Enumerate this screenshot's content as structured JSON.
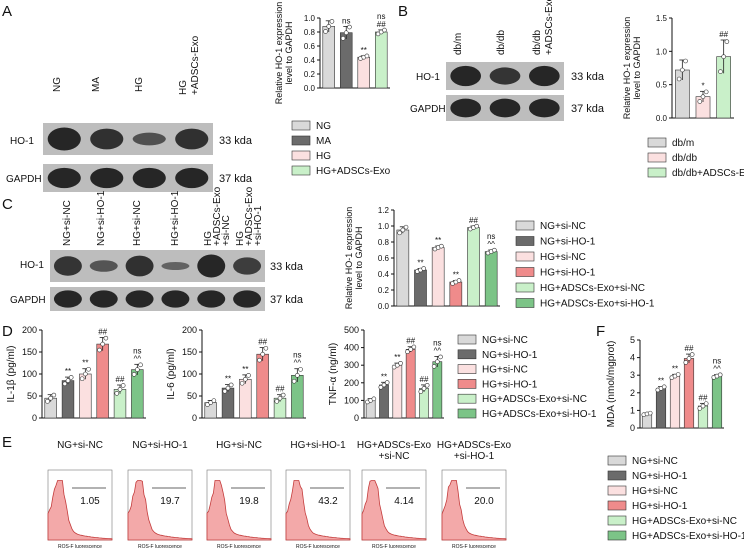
{
  "colors": {
    "NG": "#d9d9d9",
    "MA": "#6b6b6b",
    "HG": "#fbe0e0",
    "HG_ADSCs_Exo": "#c9f0c9",
    "si_NC_ng": "#d9d9d9",
    "si_HO1_ng": "#6b6b6b",
    "si_NC_hg": "#fbe0e0",
    "si_HO1_hg": "#ef8b8b",
    "exo_si_NC": "#c9f0c9",
    "exo_si_HO1": "#7cc487",
    "blot_bg": "#bdbdbd",
    "band": "#151515",
    "flow_fill": "#f3a9a9",
    "flow_line": "#c43c3c"
  },
  "panelA": {
    "label": "A",
    "lanes": [
      "NG",
      "MA",
      "HG",
      "HG\n+ADSCs-Exo"
    ],
    "rows": [
      {
        "name": "HO-1",
        "size": "33 kda"
      },
      {
        "name": "GAPDH",
        "size": "37 kda"
      }
    ],
    "chart_data": {
      "type": "bar",
      "ylabel": "Relative HO-1 expression\nlevel to GAPDH",
      "ylim": [
        0,
        1.0
      ],
      "yticks": [
        "0.0",
        "0.2",
        "0.4",
        "0.6",
        "0.8",
        "1.0"
      ],
      "categories": [
        "NG",
        "MA",
        "HG",
        "HG+ADSCs-Exo"
      ],
      "values": [
        0.88,
        0.79,
        0.44,
        0.8
      ],
      "errors": [
        0.08,
        0.09,
        0.02,
        0.03
      ],
      "sig": [
        "",
        "ns",
        "**",
        "ns\n##"
      ],
      "legend": [
        "NG",
        "MA",
        "HG",
        "HG+ADSCs-Exo"
      ]
    }
  },
  "panelB": {
    "label": "B",
    "lanes": [
      "db/m",
      "db/db",
      "db/db\n+ADSCs-Exo"
    ],
    "rows": [
      {
        "name": "HO-1",
        "size": "33 kda"
      },
      {
        "name": "GAPDH",
        "size": "37 kda"
      }
    ],
    "chart_data": {
      "type": "bar",
      "ylabel": "Relative HO-1 expression\nlevel to GAPDH",
      "ylim": [
        0,
        1.5
      ],
      "yticks": [
        "0.0",
        "0.5",
        "1.0",
        "1.5"
      ],
      "categories": [
        "db/m",
        "db/db",
        "db/db+ADSCs-Exo"
      ],
      "values": [
        0.72,
        0.32,
        0.92
      ],
      "errors": [
        0.15,
        0.08,
        0.25
      ],
      "sig": [
        "",
        "*",
        "##"
      ],
      "legend": [
        "db/m",
        "db/db",
        "db/db+ADSCs-Exo"
      ]
    }
  },
  "panelC": {
    "label": "C",
    "lanes": [
      "NG+si-NC",
      "NG+si-HO-1",
      "HG+si-NC",
      "HG+si-HO-1",
      "HG\n+ADSCs-Exo\n+si-NC",
      "HG\n+ADSCs-Exo\n+si-HO-1"
    ],
    "rows": [
      {
        "name": "HO-1",
        "size": "33 kda"
      },
      {
        "name": "GAPDH",
        "size": "37 kda"
      }
    ],
    "chart_data": {
      "type": "bar",
      "ylabel": "Relative HO-1 expression\nlevel to GAPDH",
      "ylim": [
        0,
        1.2
      ],
      "yticks": [
        "0.0",
        "0.2",
        "0.4",
        "0.6",
        "0.8",
        "1.0",
        "1.2"
      ],
      "categories": [
        "NG+si-NC",
        "NG+si-HO-1",
        "HG+si-NC",
        "HG+si-HO-1",
        "HG+ADSCs-Exo+si-NC",
        "HG+ADSCs-Exo+si-HO-1"
      ],
      "values": [
        0.95,
        0.45,
        0.73,
        0.3,
        0.98,
        0.68
      ],
      "errors": [
        0.04,
        0.02,
        0.02,
        0.02,
        0.02,
        0.02
      ],
      "sig": [
        "",
        "**",
        "**",
        "**",
        "##",
        "ns\n^^"
      ],
      "legend": [
        "NG+si-NC",
        "NG+si-HO-1",
        "HG+si-NC",
        "HG+si-HO-1",
        "HG+ADSCs-Exo+si-NC",
        "HG+ADSCs-Exo+si-HO-1"
      ]
    }
  },
  "panelD": {
    "label": "D",
    "legend": [
      "NG+si-NC",
      "NG+si-HO-1",
      "HG+si-NC",
      "HG+si-HO-1",
      "HG+ADSCs-Exo+si-NC",
      "HG+ADSCs-Exo+si-HO-1"
    ],
    "charts": [
      {
        "type": "bar",
        "ylabel": "IL-1β (pg/ml)",
        "ylim": [
          0,
          200
        ],
        "yticks": [
          "0",
          "50",
          "100",
          "150",
          "200"
        ],
        "values": [
          45,
          85,
          100,
          168,
          65,
          110
        ],
        "errors": [
          8,
          8,
          12,
          15,
          10,
          12
        ],
        "sig": [
          "",
          "**",
          "**",
          "##",
          "##",
          "ns\n^^"
        ]
      },
      {
        "type": "bar",
        "ylabel": "IL-6 (pg/ml)",
        "ylim": [
          0,
          200
        ],
        "yticks": [
          "0",
          "50",
          "100",
          "150",
          "200"
        ],
        "values": [
          35,
          68,
          88,
          145,
          45,
          97
        ],
        "errors": [
          5,
          8,
          10,
          15,
          8,
          15
        ],
        "sig": [
          "",
          "**",
          "**",
          "##",
          "##",
          "ns\n^^"
        ]
      },
      {
        "type": "bar",
        "ylabel": "TNF-α (ng/ml)",
        "ylim": [
          0,
          500
        ],
        "yticks": [
          "0",
          "100",
          "200",
          "300",
          "400",
          "500"
        ],
        "values": [
          100,
          188,
          300,
          390,
          168,
          320
        ],
        "errors": [
          10,
          15,
          12,
          15,
          20,
          30
        ],
        "sig": [
          "",
          "**",
          "**",
          "##",
          "##",
          "ns\n^^"
        ]
      }
    ]
  },
  "panelE": {
    "label": "E",
    "titles": [
      "NG+si-NC",
      "NG+si-HO-1",
      "HG+si-NC",
      "HG+si-HO-1",
      "HG+ADSCs-Exo\n+si-NC",
      "HG+ADSCs-Exo\n+si-HO-1"
    ],
    "values": [
      "1.05",
      "19.7",
      "19.8",
      "43.2",
      "4.14",
      "20.0"
    ],
    "xlabel": "ROS-F luorescence"
  },
  "panelF": {
    "label": "F",
    "chart_data": {
      "type": "bar",
      "ylabel": "MDA (nmol/mgprot)",
      "ylim": [
        0,
        5
      ],
      "yticks": [
        "0",
        "1",
        "2",
        "3",
        "4",
        "5"
      ],
      "categories": [
        "NG+si-NC",
        "NG+si-HO-1",
        "HG+si-NC",
        "HG+si-HO-1",
        "HG+ADSCs-Exo+si-NC",
        "HG+ADSCs-Exo+si-HO-1"
      ],
      "values": [
        0.8,
        2.25,
        2.95,
        3.95,
        1.25,
        2.95
      ],
      "errors": [
        0.05,
        0.1,
        0.1,
        0.25,
        0.15,
        0.08
      ],
      "sig": [
        "",
        "**",
        "**",
        "##",
        "##",
        "ns\n^^"
      ]
    },
    "legend": [
      "NG+si-NC",
      "NG+si-HO-1",
      "HG+si-NC",
      "HG+si-HO-1",
      "HG+ADSCs-Exo+si-NC",
      "HG+ADSCs-Exo+si-HO-1"
    ]
  }
}
